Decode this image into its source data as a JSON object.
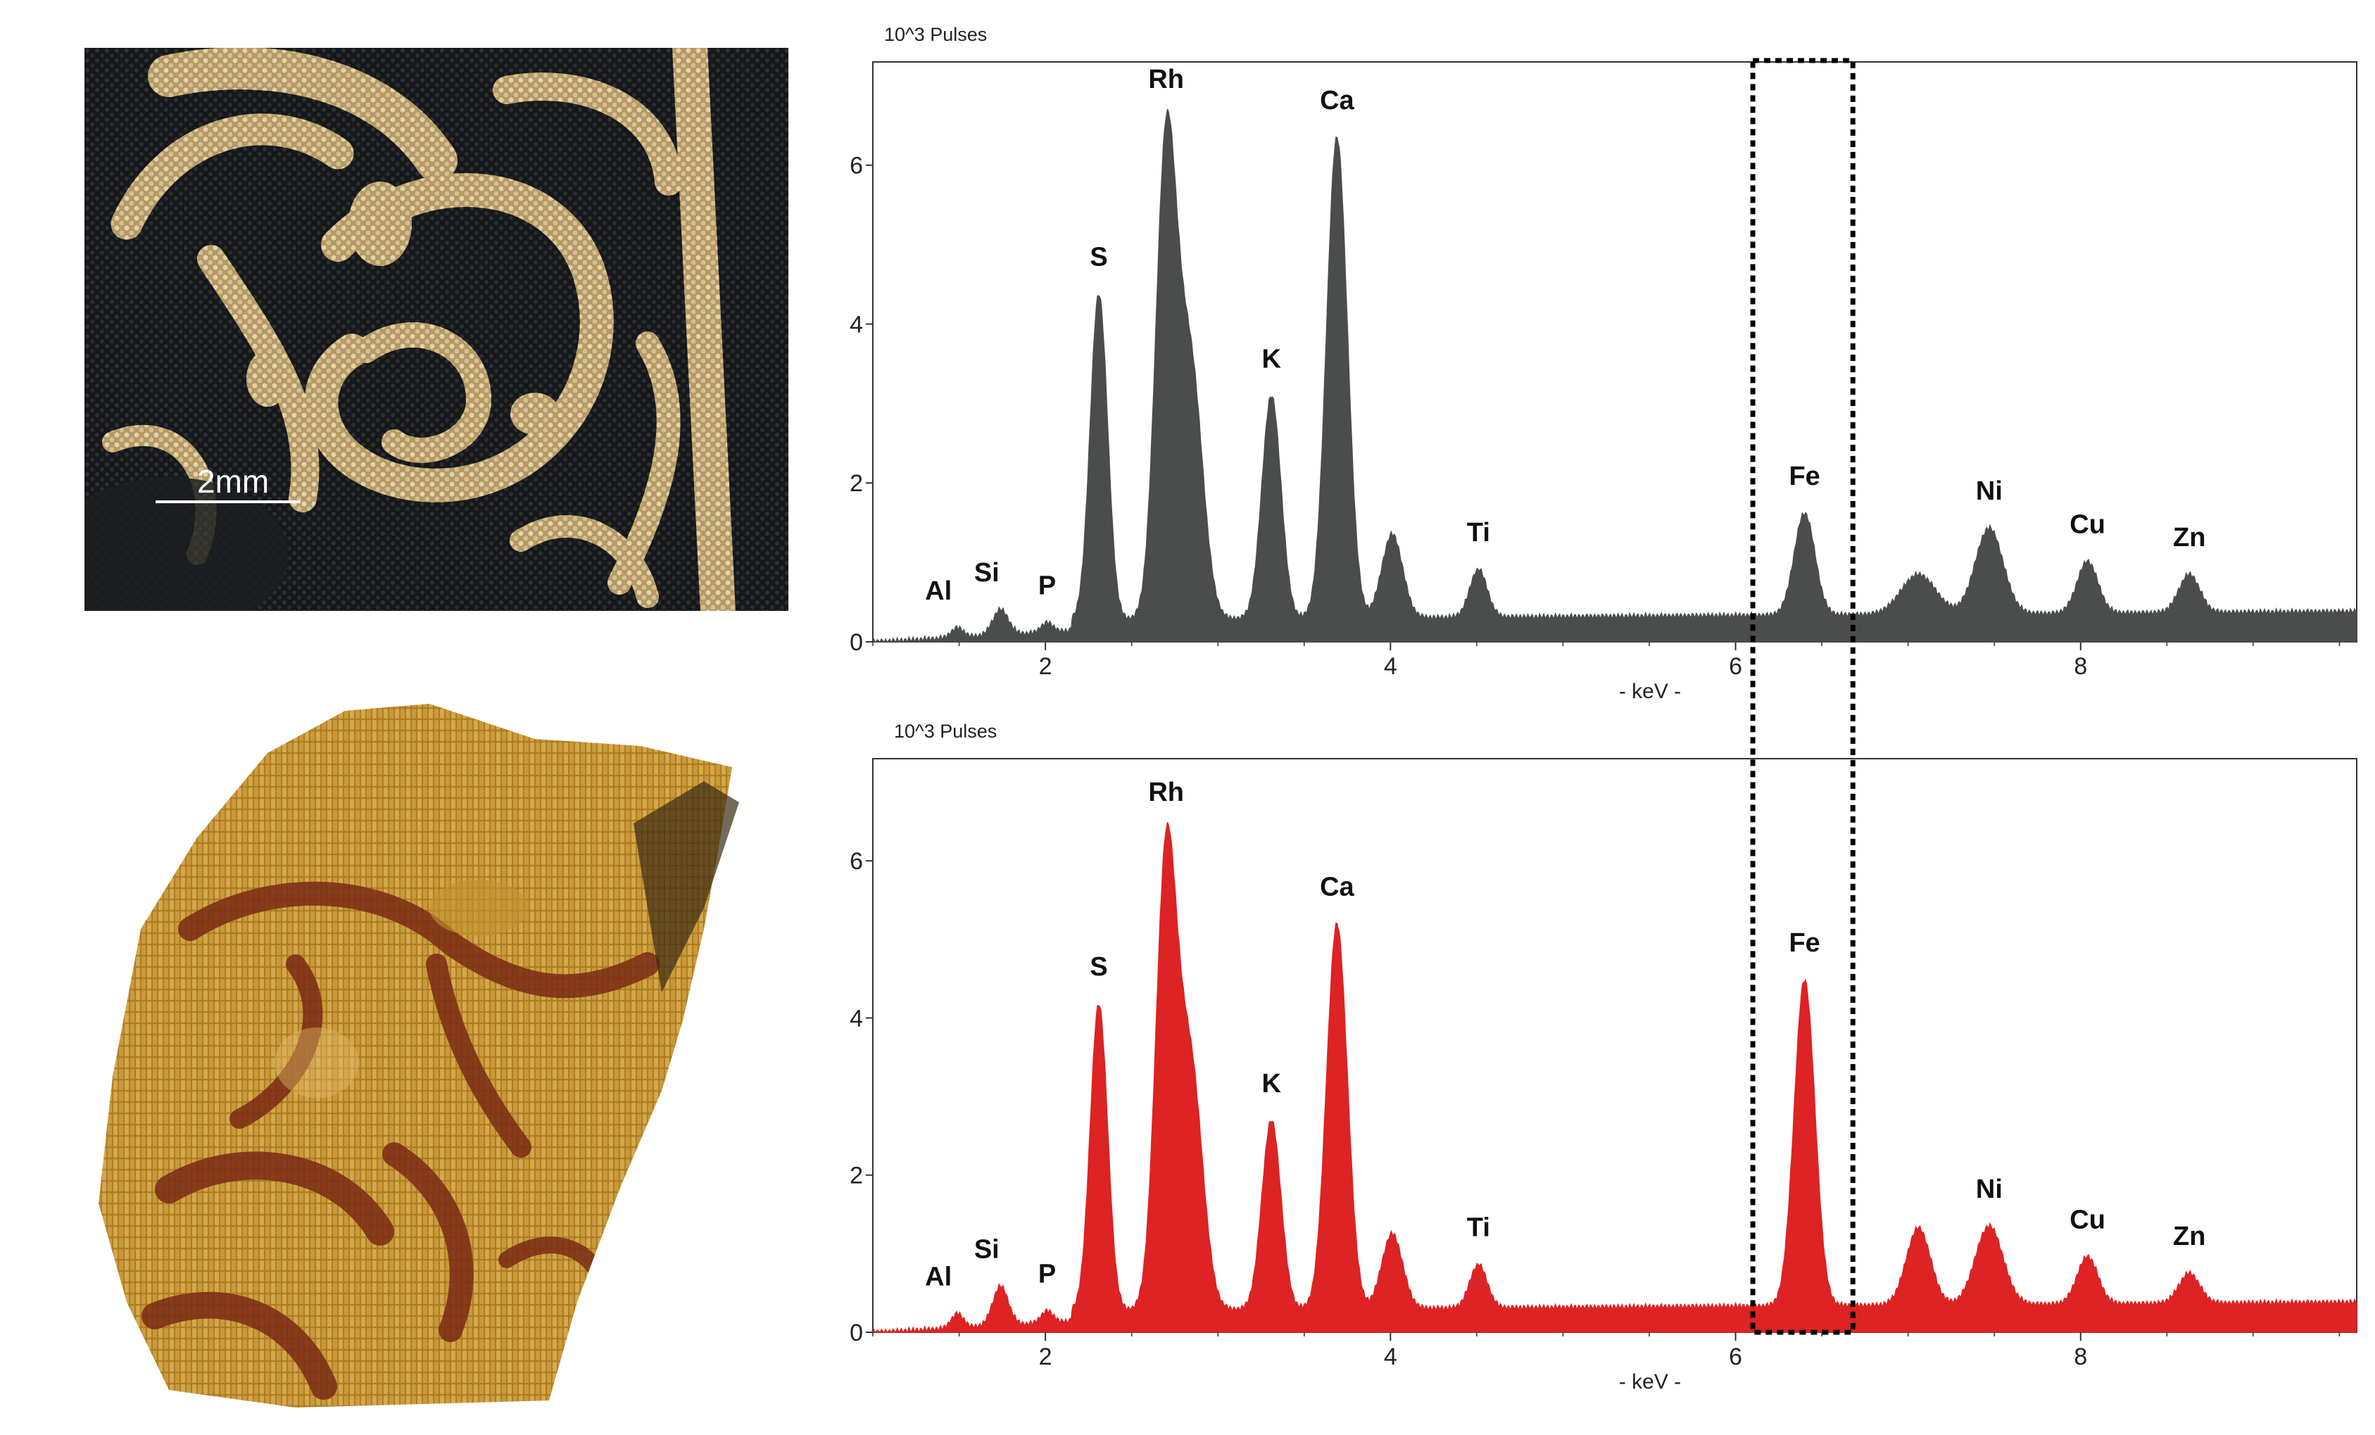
{
  "photos": {
    "top": {
      "scale_bar_label": "2mm"
    },
    "bottom": {}
  },
  "colors": {
    "spectrum_top": "#4a4d4c",
    "spectrum_bottom": "#dd2323",
    "axis": "#333333",
    "highlight_box": "#000000"
  },
  "chart_data": [
    {
      "type": "area",
      "y_unit_label": "10^3 Pulses",
      "xlabel": "- keV -",
      "xlim": [
        1.0,
        9.6
      ],
      "ylim": [
        0,
        7.3
      ],
      "x_ticks": [
        2,
        4,
        6,
        8
      ],
      "y_ticks": [
        0,
        2,
        4,
        6
      ],
      "background": 0.35,
      "peaks": [
        {
          "label": "Al",
          "energy": 1.49,
          "height": 0.12,
          "width": 0.035
        },
        {
          "label": "Si",
          "energy": 1.74,
          "height": 0.32,
          "width": 0.045
        },
        {
          "label": "P",
          "energy": 2.01,
          "height": 0.12,
          "width": 0.035
        },
        {
          "label": "S",
          "energy": 2.31,
          "height": 4.1,
          "width": 0.05
        },
        {
          "label": "Rh",
          "energy": 2.7,
          "height": 5.9,
          "width": 0.06
        },
        {
          "label": "",
          "energy": 2.84,
          "height": 3.2,
          "width": 0.07
        },
        {
          "label": "K",
          "energy": 3.31,
          "height": 2.8,
          "width": 0.055
        },
        {
          "label": "Ca",
          "energy": 3.69,
          "height": 6.05,
          "width": 0.06
        },
        {
          "label": "",
          "energy": 4.01,
          "height": 1.05,
          "width": 0.06
        },
        {
          "label": "Ti",
          "energy": 4.51,
          "height": 0.6,
          "width": 0.05
        },
        {
          "label": "Fe",
          "energy": 6.4,
          "height": 1.28,
          "width": 0.06
        },
        {
          "label": "",
          "energy": 7.06,
          "height": 0.5,
          "width": 0.1
        },
        {
          "label": "Ni",
          "energy": 7.47,
          "height": 1.08,
          "width": 0.08
        },
        {
          "label": "Cu",
          "energy": 8.04,
          "height": 0.65,
          "width": 0.06
        },
        {
          "label": "Zn",
          "energy": 8.63,
          "height": 0.48,
          "width": 0.06
        }
      ]
    },
    {
      "type": "area",
      "y_unit_label": "10^3 Pulses",
      "xlabel": "- keV -",
      "xlim": [
        1.0,
        9.6
      ],
      "ylim": [
        0,
        7.3
      ],
      "x_ticks": [
        2,
        4,
        6,
        8
      ],
      "y_ticks": [
        0,
        2,
        4,
        6
      ],
      "background": 0.35,
      "peaks": [
        {
          "label": "Al",
          "energy": 1.49,
          "height": 0.18,
          "width": 0.035
        },
        {
          "label": "Si",
          "energy": 1.74,
          "height": 0.5,
          "width": 0.045
        },
        {
          "label": "P",
          "energy": 2.01,
          "height": 0.15,
          "width": 0.035
        },
        {
          "label": "S",
          "energy": 2.31,
          "height": 3.9,
          "width": 0.05
        },
        {
          "label": "Rh",
          "energy": 2.7,
          "height": 5.7,
          "width": 0.06
        },
        {
          "label": "",
          "energy": 2.84,
          "height": 3.1,
          "width": 0.07
        },
        {
          "label": "K",
          "energy": 3.31,
          "height": 2.4,
          "width": 0.055
        },
        {
          "label": "Ca",
          "energy": 3.69,
          "height": 4.9,
          "width": 0.06
        },
        {
          "label": "",
          "energy": 4.01,
          "height": 0.95,
          "width": 0.06
        },
        {
          "label": "Ti",
          "energy": 4.51,
          "height": 0.55,
          "width": 0.05
        },
        {
          "label": "Fe",
          "energy": 6.4,
          "height": 4.15,
          "width": 0.06
        },
        {
          "label": "",
          "energy": 7.06,
          "height": 0.98,
          "width": 0.07
        },
        {
          "label": "Ni",
          "energy": 7.47,
          "height": 1.0,
          "width": 0.08
        },
        {
          "label": "Cu",
          "energy": 8.04,
          "height": 0.6,
          "width": 0.06
        },
        {
          "label": "Zn",
          "energy": 8.63,
          "height": 0.38,
          "width": 0.06
        }
      ]
    }
  ],
  "highlight": {
    "xmin": 6.1,
    "xmax": 6.68
  }
}
